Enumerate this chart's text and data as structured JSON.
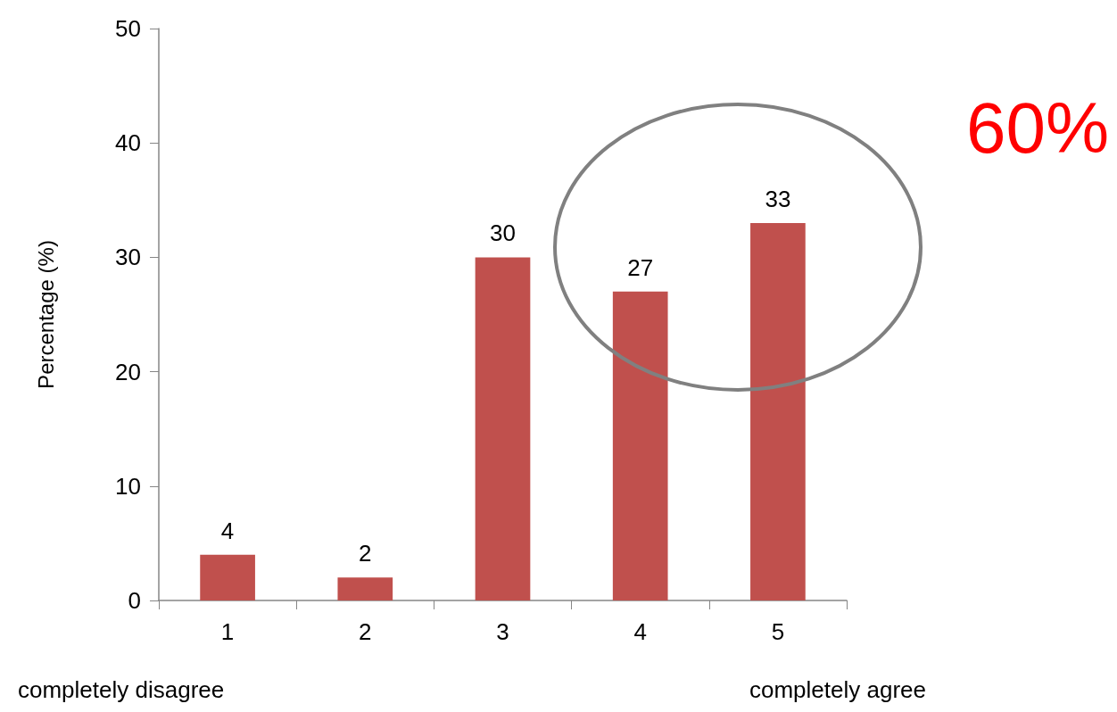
{
  "chart_data": {
    "type": "bar",
    "ylabel": "Percentage (%)",
    "categories": [
      "1",
      "2",
      "3",
      "4",
      "5"
    ],
    "values": [
      4,
      2,
      30,
      27,
      33
    ],
    "color": "#c0504d",
    "ylim": [
      0,
      50
    ],
    "yticks": [
      0,
      10,
      20,
      30,
      40,
      50
    ],
    "grid": false,
    "data_labels": true,
    "annotations": [
      "60%",
      "completely disagree",
      "completely agree"
    ]
  }
}
